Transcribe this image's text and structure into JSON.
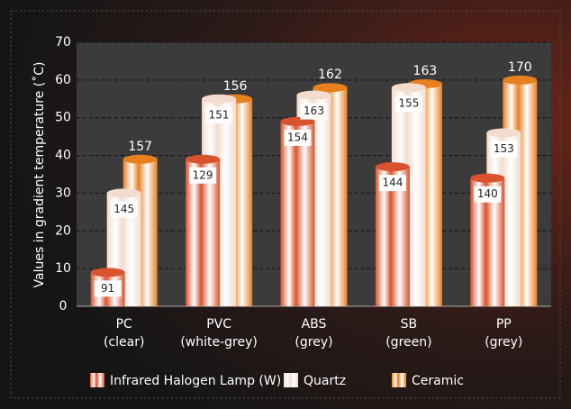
{
  "chart_data": {
    "type": "bar",
    "y_label": "Values in gradient temperature (˚C)",
    "categories": [
      [
        "PC",
        "(clear)"
      ],
      [
        "PVC",
        "(white-grey)"
      ],
      [
        "ABS",
        "(grey)"
      ],
      [
        "SB",
        "(green)"
      ],
      [
        "PP",
        "(grey)"
      ]
    ],
    "series": [
      {
        "name": "Infrared Halogen Lamp (W)",
        "color": "#d9532e",
        "values": [
          9,
          39,
          49,
          37,
          34
        ],
        "temperatures": [
          91,
          129,
          154,
          144,
          140
        ]
      },
      {
        "name": "Quartz",
        "color": "#f3dccd",
        "values": [
          30,
          55,
          56,
          58,
          46
        ],
        "temperatures": [
          145,
          151,
          163,
          155,
          153
        ]
      },
      {
        "name": "Ceramic",
        "color": "#e8801e",
        "values": [
          39,
          55,
          58,
          59,
          60
        ],
        "temperatures": [
          157,
          156,
          162,
          163,
          170
        ]
      }
    ],
    "ylim": [
      0,
      70
    ],
    "yticks": [
      0,
      10,
      20,
      30,
      40,
      50,
      60,
      70
    ],
    "grid": true,
    "legend": "bottom"
  }
}
